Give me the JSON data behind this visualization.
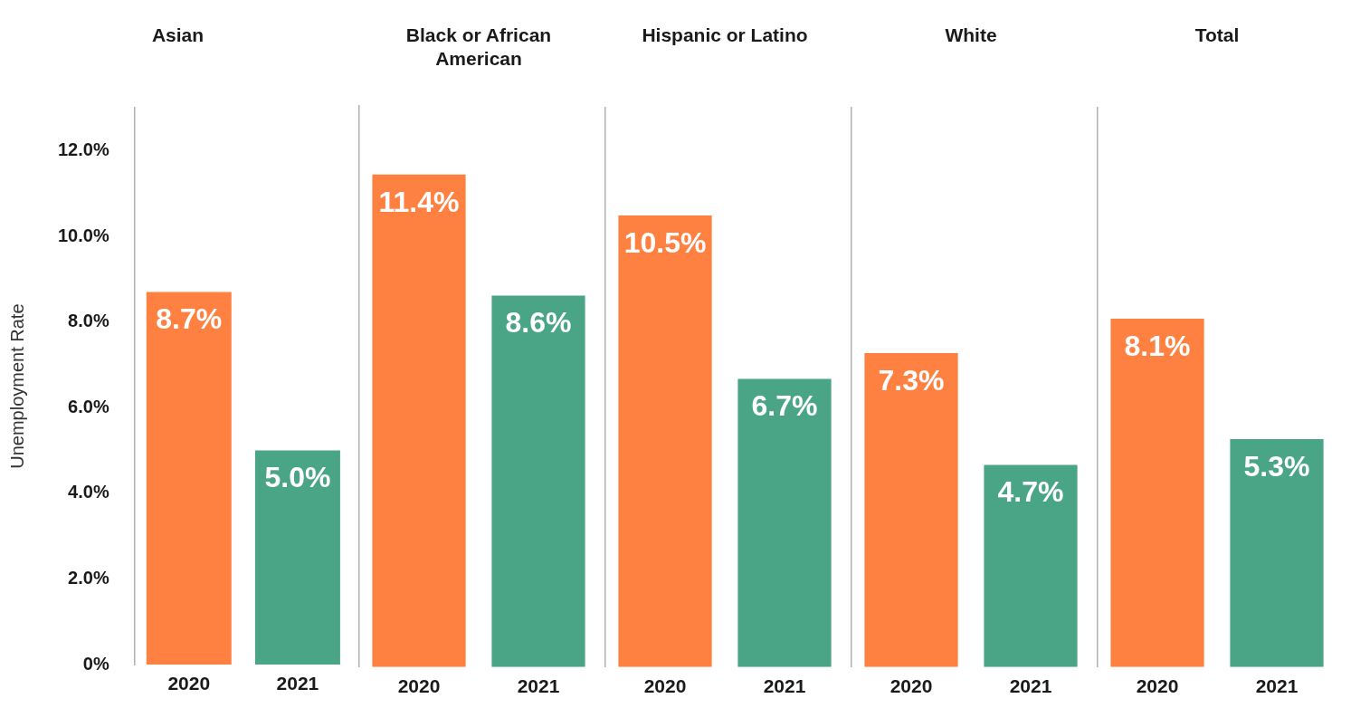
{
  "chart_data": [
    {
      "type": "bar",
      "title": "Asian",
      "ylabel": "Unemployment Rate",
      "categories": [
        "2020",
        "2021"
      ],
      "values": [
        8.7,
        5.0
      ],
      "colors": [
        "#ff8142",
        "#4aa587"
      ],
      "value_labels": [
        "8.7%",
        "5.0%"
      ],
      "ylim": [
        0,
        13
      ],
      "yticks": [
        {
          "value": 0,
          "label": "0%"
        },
        {
          "value": 2,
          "label": "2.0%"
        },
        {
          "value": 4,
          "label": "4.0%"
        },
        {
          "value": 6,
          "label": "6.0%"
        },
        {
          "value": 8,
          "label": "8.0%"
        },
        {
          "value": 10,
          "label": "10.0%"
        },
        {
          "value": 12,
          "label": "12.0%"
        }
      ],
      "grid": false,
      "legend": false
    },
    {
      "type": "bar",
      "title": "Black or African American",
      "categories": [
        "2020",
        "2021"
      ],
      "values": [
        11.4,
        8.6
      ],
      "colors": [
        "#ff8142",
        "#4aa587"
      ],
      "value_labels": [
        "11.4%",
        "8.6%"
      ],
      "ylim": [
        0,
        13
      ],
      "tick_labels": "x",
      "grid": false,
      "legend": false
    },
    {
      "type": "bar",
      "title": "Hispanic or Latino",
      "categories": [
        "2020",
        "2021"
      ],
      "values": [
        10.5,
        6.7
      ],
      "colors": [
        "#ff8142",
        "#4aa587"
      ],
      "value_labels": [
        "10.5%",
        "6.7%"
      ],
      "ylim": [
        0,
        13
      ],
      "tick_labels": "x",
      "grid": false,
      "legend": false
    },
    {
      "type": "bar",
      "title": "White",
      "categories": [
        "2020",
        "2021"
      ],
      "values": [
        7.3,
        4.7
      ],
      "colors": [
        "#ff8142",
        "#4aa587"
      ],
      "value_labels": [
        "7.3%",
        "4.7%"
      ],
      "ylim": [
        0,
        13
      ],
      "tick_labels": "x",
      "grid": false,
      "legend": false
    },
    {
      "type": "bar",
      "title": "Total",
      "categories": [
        "2020",
        "2021"
      ],
      "values": [
        8.1,
        5.3
      ],
      "colors": [
        "#ff8142",
        "#4aa587"
      ],
      "value_labels": [
        "8.1%",
        "5.3%"
      ],
      "ylim": [
        0,
        13
      ],
      "tick_labels": "x",
      "grid": false,
      "legend": false
    }
  ]
}
